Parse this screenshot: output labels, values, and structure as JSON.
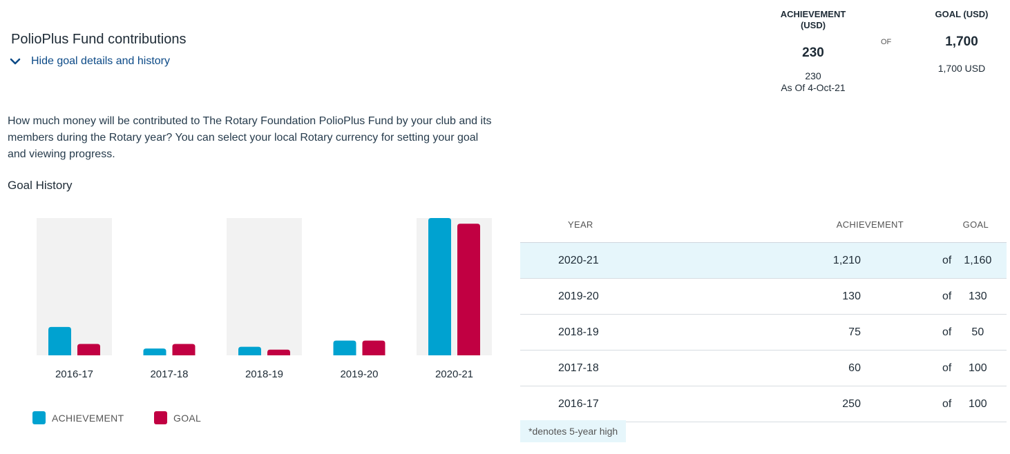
{
  "header": {
    "title": "PolioPlus Fund contributions",
    "toggle_label": "Hide goal details and history"
  },
  "summary": {
    "achievement_label_line1": "ACHIEVEMENT",
    "achievement_label_line2": "(USD)",
    "achievement_value": "230",
    "achievement_sub": "230",
    "as_of": "As Of 4-Oct-21",
    "of_label": "OF",
    "goal_label": "GOAL (USD)",
    "goal_value": "1,700",
    "goal_sub": "1,700 USD"
  },
  "description": "How much money will be contributed to The Rotary Foundation PolioPlus Fund by your club and its members during the Rotary year? You can select your local Rotary currency for setting your goal and viewing progress.",
  "goal_history_title": "Goal History",
  "colors": {
    "achievement": "#00a2d0",
    "goal": "#c10042",
    "band": "#f2f2f2"
  },
  "chart_data": {
    "type": "bar",
    "categories": [
      "2016-17",
      "2017-18",
      "2018-19",
      "2019-20",
      "2020-21"
    ],
    "series": [
      {
        "name": "ACHIEVEMENT",
        "values": [
          250,
          60,
          75,
          130,
          1210
        ]
      },
      {
        "name": "GOAL",
        "values": [
          100,
          100,
          50,
          130,
          1160
        ]
      }
    ],
    "shaded_categories": [
      "2016-17",
      "2018-19",
      "2020-21"
    ],
    "ylim": [
      0,
      1210
    ],
    "legend": "bottom-left"
  },
  "table": {
    "headers": {
      "year": "YEAR",
      "achievement": "ACHIEVEMENT",
      "goal": "GOAL"
    },
    "rows": [
      {
        "year": "2020-21",
        "achievement": "1,210",
        "of": "of",
        "goal": "1,160",
        "highlight": true
      },
      {
        "year": "2019-20",
        "achievement": "130",
        "of": "of",
        "goal": "130",
        "highlight": false
      },
      {
        "year": "2018-19",
        "achievement": "75",
        "of": "of",
        "goal": "50",
        "highlight": false
      },
      {
        "year": "2017-18",
        "achievement": "60",
        "of": "of",
        "goal": "100",
        "highlight": false
      },
      {
        "year": "2016-17",
        "achievement": "250",
        "of": "of",
        "goal": "100",
        "highlight": false
      }
    ]
  },
  "note": "*denotes 5-year high"
}
